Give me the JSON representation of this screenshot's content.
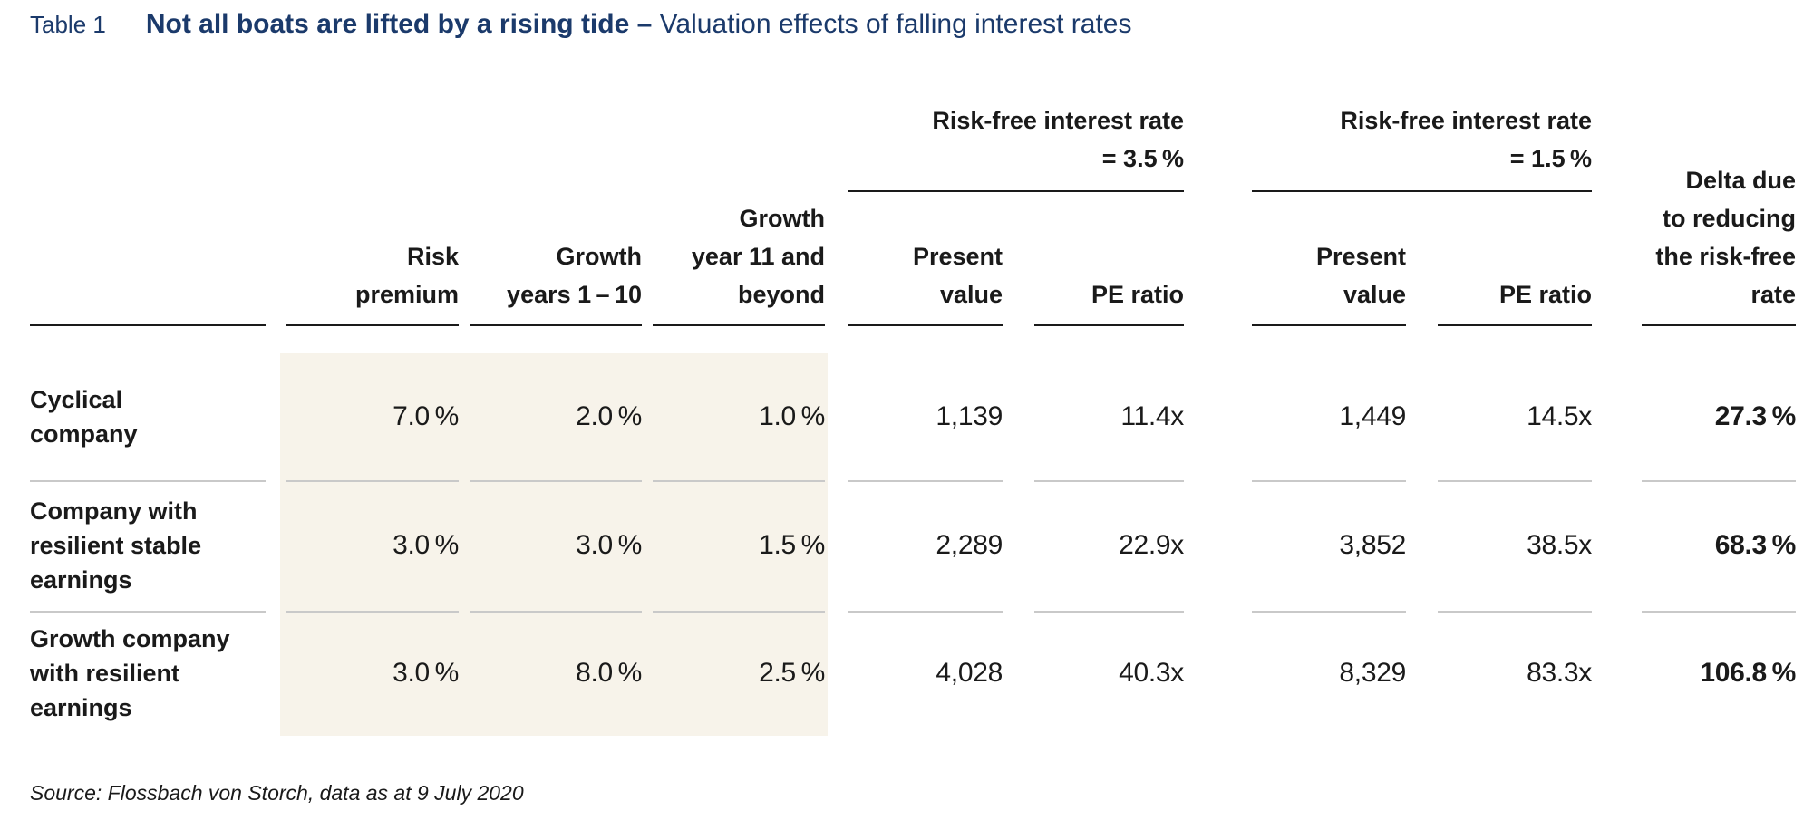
{
  "header": {
    "table_label": "Table 1",
    "title_bold": "Not all boats are lifted by a rising tide",
    "title_separator": " – ",
    "title_regular": "Valuation effects of falling interest rates"
  },
  "table": {
    "group_headers": [
      {
        "label": "Risk-free interest rate",
        "value": "= 3.5 %"
      },
      {
        "label": "Risk-free interest rate",
        "value": "= 1.5 %"
      }
    ],
    "column_headers": [
      "Risk\npremium",
      "Growth\nyears 1 – 10",
      "Growth\nyear 11 and\nbeyond",
      "Present\nvalue",
      "PE ratio",
      "Present\nvalue",
      "PE ratio",
      "Delta due\nto reducing\nthe risk-free\nrate"
    ],
    "rows": [
      {
        "label": "Cyclical\ncompany",
        "values": [
          "7.0 %",
          "2.0 %",
          "1.0 %",
          "1,139",
          "11.4x",
          "1,449",
          "14.5x",
          "27.3 %"
        ]
      },
      {
        "label": "Company with\nresilient stable\nearnings",
        "values": [
          "3.0 %",
          "3.0 %",
          "1.5 %",
          "2,289",
          "22.9x",
          "3,852",
          "38.5x",
          "68.3 %"
        ]
      },
      {
        "label": "Growth company\nwith resilient\nearnings",
        "values": [
          "3.0 %",
          "8.0 %",
          "2.5 %",
          "4,028",
          "40.3x",
          "8,329",
          "83.3x",
          "106.8 %"
        ]
      }
    ]
  },
  "footer": {
    "source": "Source: Flossbach von Storch, data as at 9 July 2020"
  },
  "colors": {
    "title_navy": "#1b3a6b",
    "body_text": "#1a1a1a",
    "highlight_beige": "#f7f3ea",
    "row_separator": "#c9c9c9"
  }
}
